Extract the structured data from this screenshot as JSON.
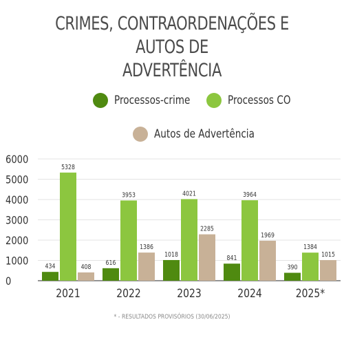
{
  "title_line1": "CRIMES, CONTRAORDENAÇÕES E AUTOS DE",
  "title_line2": "ADVERTÊNCIA",
  "footnote": "* - RESULTADOS PROVISÓRIOS (30/06/2025)",
  "colors": {
    "processos_crime": "#4f8a10",
    "processos_co": "#8cc63f",
    "autos": "#c8b197"
  },
  "chart_data": {
    "type": "bar",
    "title": "CRIMES, CONTRAORDENAÇÕES E AUTOS DE ADVERTÊNCIA",
    "categories": [
      "2021",
      "2022",
      "2023",
      "2024",
      "2025*"
    ],
    "series": [
      {
        "name": "Processos-crime",
        "values": [
          434,
          616,
          1018,
          841,
          390
        ]
      },
      {
        "name": "Processos CO",
        "values": [
          5328,
          3953,
          4021,
          3964,
          1384
        ]
      },
      {
        "name": "Autos de Advertência",
        "values": [
          408,
          1386,
          2285,
          1969,
          1015
        ]
      }
    ],
    "ylim": [
      0,
      6000
    ],
    "yticks": [
      0,
      1000,
      2000,
      3000,
      4000,
      5000,
      6000
    ],
    "grid": true,
    "legend_position": "top"
  }
}
